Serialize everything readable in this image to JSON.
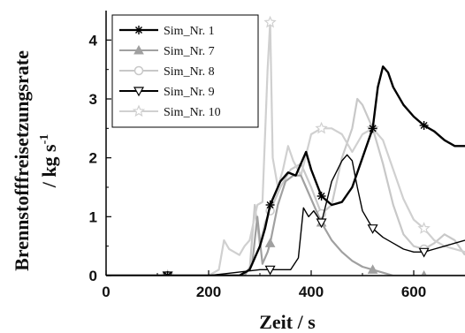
{
  "chart_data": {
    "type": "line",
    "xlabel": "Zeit / s",
    "ylabel_main": "Brennstofffreisetzungsrate",
    "ylabel_unit_prefix": "/ kg s",
    "ylabel_unit_exp": "-1",
    "xlim": [
      0,
      700
    ],
    "ylim": [
      0,
      4.5
    ],
    "xticks": [
      0,
      200,
      400,
      600
    ],
    "yticks": [
      0,
      1,
      2,
      3,
      4
    ],
    "grid": false,
    "legend_position": "top-left",
    "series": [
      {
        "name": "Sim_Nr. 1",
        "color": "#000000",
        "marker": "asterisk",
        "marker_x": [
          120,
          320,
          420,
          520,
          620
        ],
        "x": [
          0,
          200,
          260,
          280,
          290,
          300,
          310,
          320,
          340,
          355,
          370,
          380,
          390,
          400,
          420,
          440,
          460,
          480,
          500,
          520,
          530,
          540,
          550,
          560,
          580,
          600,
          620,
          640,
          660,
          680,
          700
        ],
        "y": [
          0,
          0,
          0,
          0.1,
          0.3,
          0.5,
          0.8,
          1.2,
          1.6,
          1.75,
          1.7,
          1.9,
          2.1,
          1.8,
          1.35,
          1.2,
          1.25,
          1.5,
          2.0,
          2.5,
          3.2,
          3.55,
          3.45,
          3.2,
          2.9,
          2.7,
          2.55,
          2.45,
          2.3,
          2.2,
          2.2
        ]
      },
      {
        "name": "Sim_Nr. 7",
        "color": "#a0a0a0",
        "marker": "triangle-up",
        "marker_x": [
          120,
          320,
          420,
          520,
          620
        ],
        "x": [
          0,
          200,
          270,
          285,
          295,
          305,
          315,
          320,
          335,
          350,
          365,
          380,
          390,
          400,
          420,
          440,
          460,
          480,
          500,
          520,
          540,
          560,
          580,
          600,
          620,
          700
        ],
        "y": [
          0,
          0,
          0,
          0.2,
          1.0,
          0.2,
          0.4,
          0.55,
          1.2,
          1.6,
          1.7,
          1.7,
          1.5,
          1.3,
          0.9,
          0.6,
          0.4,
          0.25,
          0.15,
          0.1,
          0.05,
          0,
          0,
          0,
          0,
          0
        ]
      },
      {
        "name": "Sim_Nr. 8",
        "color": "#c8c8c8",
        "marker": "circle-open",
        "marker_x": [
          120,
          320,
          420,
          520,
          620
        ],
        "x": [
          0,
          200,
          260,
          280,
          290,
          300,
          310,
          320,
          340,
          360,
          380,
          400,
          420,
          440,
          460,
          480,
          490,
          500,
          520,
          540,
          560,
          580,
          600,
          620,
          640,
          660,
          680,
          700
        ],
        "y": [
          0,
          0,
          0,
          0.1,
          1.2,
          0.5,
          0.9,
          1.1,
          1.5,
          1.8,
          1.9,
          1.5,
          1.05,
          1.2,
          2.0,
          2.5,
          3.0,
          2.9,
          2.5,
          1.9,
          1.2,
          0.7,
          0.5,
          0.45,
          0.55,
          0.7,
          0.6,
          0.35
        ]
      },
      {
        "name": "Sim_Nr. 9",
        "color": "#000000",
        "marker": "triangle-down-open",
        "marker_x": [
          120,
          320,
          420,
          520,
          620
        ],
        "x": [
          0,
          200,
          300,
          320,
          360,
          375,
          385,
          395,
          405,
          420,
          440,
          460,
          470,
          480,
          490,
          500,
          520,
          540,
          560,
          580,
          600,
          620,
          640,
          660,
          680,
          700
        ],
        "y": [
          0,
          0,
          0.1,
          0.1,
          0.1,
          0.3,
          1.15,
          1.0,
          1.1,
          0.9,
          1.6,
          1.95,
          2.05,
          1.95,
          1.5,
          1.1,
          0.8,
          0.65,
          0.55,
          0.45,
          0.4,
          0.4,
          0.45,
          0.5,
          0.55,
          0.6
        ]
      },
      {
        "name": "Sim_Nr. 10",
        "color": "#d0d0d0",
        "marker": "star-open",
        "marker_x": [
          120,
          320,
          420,
          520,
          620
        ],
        "x": [
          0,
          200,
          220,
          230,
          240,
          250,
          260,
          270,
          280,
          295,
          305,
          315,
          320,
          325,
          335,
          345,
          355,
          365,
          380,
          400,
          420,
          440,
          460,
          480,
          500,
          520,
          540,
          560,
          580,
          600,
          620,
          640,
          660,
          680,
          700
        ],
        "y": [
          0,
          0,
          0.1,
          0.6,
          0.45,
          0.4,
          0.35,
          0.5,
          0.6,
          1.2,
          1.25,
          3.5,
          4.3,
          2.0,
          1.5,
          1.8,
          2.2,
          1.95,
          1.7,
          2.4,
          2.5,
          2.5,
          2.4,
          2.1,
          2.4,
          2.5,
          2.3,
          1.8,
          1.3,
          0.95,
          0.8,
          0.6,
          0.5,
          0.45,
          0.4
        ]
      }
    ]
  }
}
